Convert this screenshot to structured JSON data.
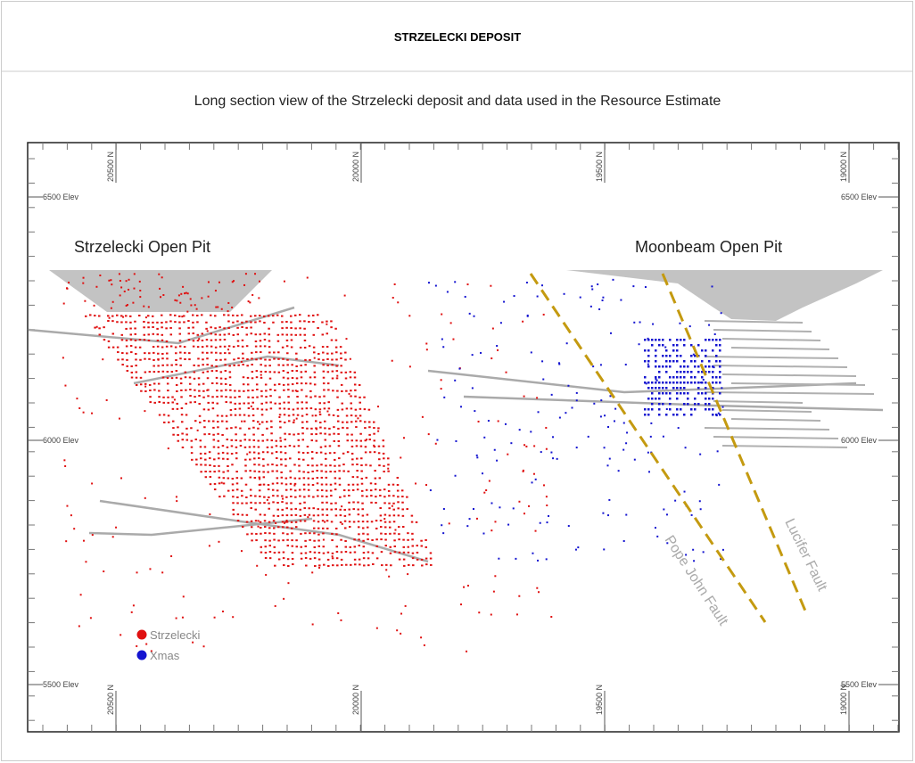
{
  "header": {
    "title": "STRZELECKI DEPOSIT"
  },
  "caption": "Long section view of the Strzelecki deposit and data used in the Resource Estimate",
  "figure": {
    "north_labels": [
      "20500 N",
      "20000 N",
      "19500 N",
      "19000 N"
    ],
    "elev_labels": [
      "6500 Elev",
      "6000 Elev",
      "5500 Elev"
    ],
    "pit_labels": [
      "Strzelecki Open Pit",
      "Moonbeam Open Pit"
    ],
    "fault_labels": [
      "Pope John Fault",
      "Lucifer Fault"
    ],
    "legend": [
      "Strzelecki",
      "Xmas"
    ]
  }
}
